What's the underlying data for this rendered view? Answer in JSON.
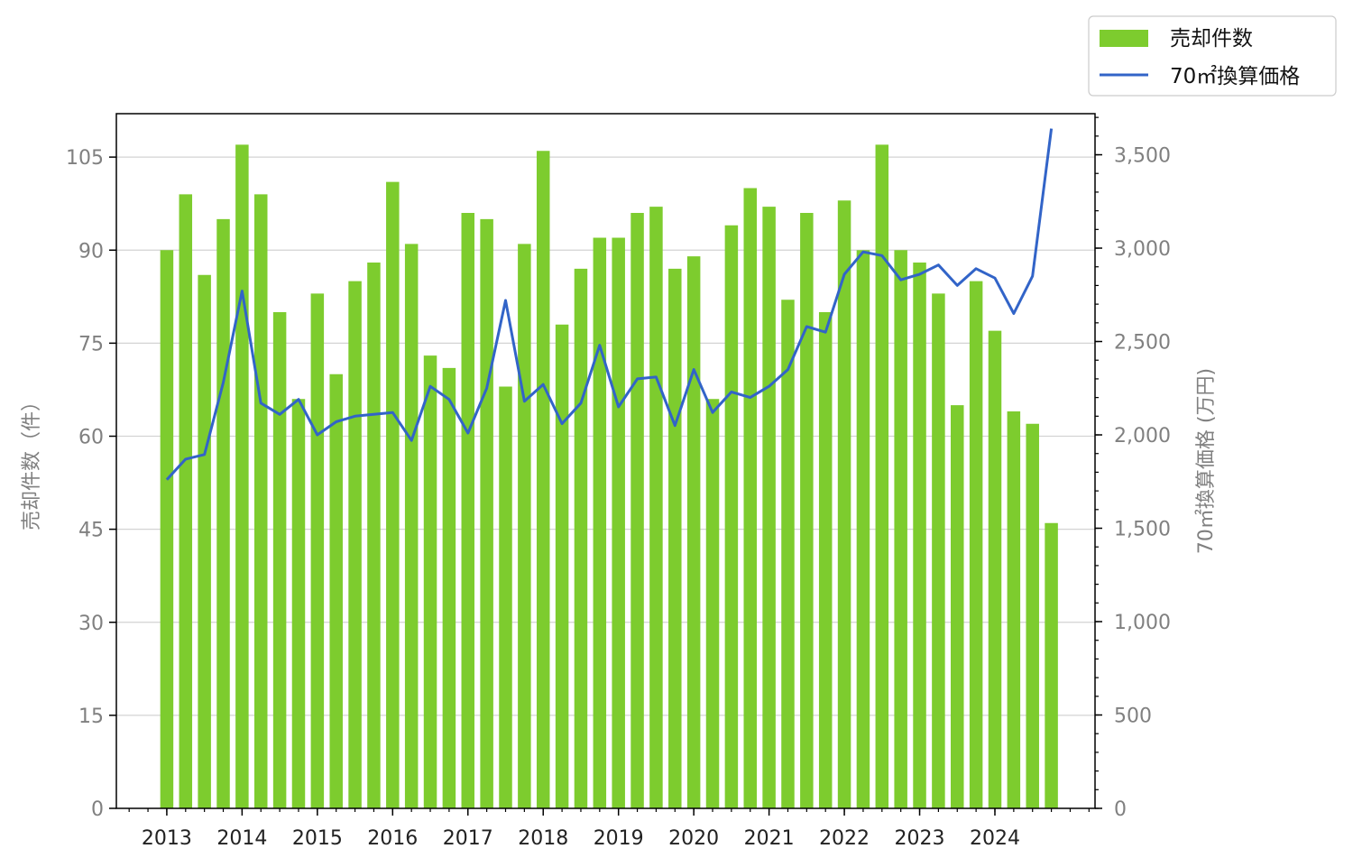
{
  "chart_data": {
    "type": "bar",
    "title": "",
    "x_tick_labels": [
      "2013",
      "2014",
      "2015",
      "2016",
      "2017",
      "2018",
      "2019",
      "2020",
      "2021",
      "2022",
      "2023",
      "2024"
    ],
    "y_left": {
      "label": "売却件数（件）",
      "range": [
        0,
        112
      ],
      "ticks": [
        "0",
        "15",
        "30",
        "45",
        "60",
        "75",
        "90",
        "105"
      ]
    },
    "y_right": {
      "label": "70㎡換算価格 (万円)",
      "range": [
        0,
        3720
      ],
      "ticks": [
        "0",
        "500",
        "1,000",
        "1,500",
        "2,000",
        "2,500",
        "3,000",
        "3,500"
      ]
    },
    "grid": "horizontal",
    "legend": {
      "position": "top-right",
      "entries": [
        "売却件数",
        "70㎡換算価格"
      ]
    },
    "colors": {
      "bars": "#7dcc2e",
      "line": "#3264c8",
      "grid": "#d3d3d3",
      "tick_labels": "#808080"
    },
    "x": [
      2013.0,
      2013.25,
      2013.5,
      2013.75,
      2014.0,
      2014.25,
      2014.5,
      2014.75,
      2015.0,
      2015.25,
      2015.5,
      2015.75,
      2016.0,
      2016.25,
      2016.5,
      2016.75,
      2017.0,
      2017.25,
      2017.5,
      2017.75,
      2018.0,
      2018.25,
      2018.5,
      2018.75,
      2019.0,
      2019.25,
      2019.5,
      2019.75,
      2020.0,
      2020.25,
      2020.5,
      2020.75,
      2021.0,
      2021.25,
      2021.5,
      2021.75,
      2022.0,
      2022.25,
      2022.5,
      2022.75,
      2023.0,
      2023.25,
      2023.5,
      2023.75,
      2024.0,
      2024.25,
      2024.5,
      2024.75
    ],
    "series": [
      {
        "name": "売却件数",
        "type": "bar",
        "axis": "left",
        "values": [
          90,
          99,
          86,
          95,
          107,
          99,
          80,
          66,
          83,
          70,
          85,
          88,
          101,
          91,
          73,
          71,
          96,
          95,
          68,
          91,
          106,
          78,
          87,
          92,
          92,
          96,
          97,
          87,
          89,
          66,
          94,
          100,
          97,
          82,
          96,
          80,
          98,
          90,
          107,
          90,
          88,
          83,
          65,
          85,
          77,
          64,
          62,
          46
        ]
      },
      {
        "name": "70㎡換算価格",
        "type": "line",
        "axis": "right",
        "values": [
          1760,
          1870,
          1895,
          2280,
          2770,
          2170,
          2110,
          2190,
          2000,
          2070,
          2100,
          2110,
          2120,
          1970,
          2260,
          2190,
          2010,
          2250,
          2720,
          2180,
          2270,
          2060,
          2170,
          2480,
          2150,
          2300,
          2310,
          2050,
          2350,
          2120,
          2230,
          2200,
          2260,
          2350,
          2580,
          2550,
          2860,
          2980,
          2960,
          2830,
          2860,
          2910,
          2800,
          2890,
          2840,
          2650,
          2850,
          3640
        ]
      }
    ]
  }
}
